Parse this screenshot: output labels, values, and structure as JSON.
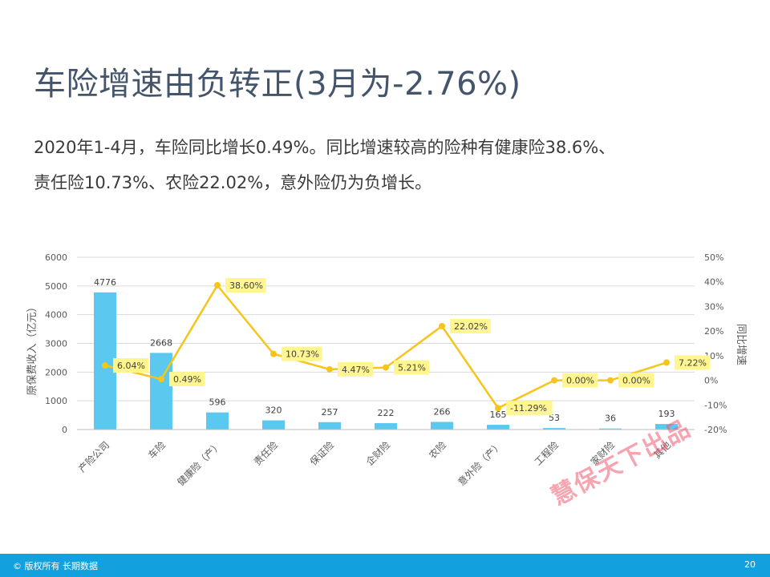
{
  "slide": {
    "title": "车险增速由负转正(3月为-2.76%)",
    "summary_line1": "2020年1-4月，车险同比增长0.49%。同比增速较高的险种有健康险38.6%、",
    "summary_line2": "责任险10.73%、农险22.02%，意外险仍为负增长。"
  },
  "watermark": "慧保天下出品",
  "footer": {
    "copyright": "© 版权所有 长期数据",
    "page_number": "20"
  },
  "chart_data": {
    "type": "bar+line",
    "categories": [
      "产险公司",
      "车险",
      "健康险（产）",
      "责任险",
      "保证险",
      "企财险",
      "农险",
      "意外险（产）",
      "工程险",
      "家财险",
      "其他"
    ],
    "series": [
      {
        "type": "bar",
        "axis": "left",
        "color": "#5bc8f0",
        "values": [
          4776,
          2668,
          596,
          320,
          257,
          222,
          266,
          165,
          53,
          36,
          193
        ],
        "labels": [
          "4776",
          "2668",
          "596",
          "320",
          "257",
          "222",
          "266",
          "165",
          "53",
          "36",
          "193"
        ]
      },
      {
        "type": "line",
        "axis": "right",
        "color": "#f5c518",
        "values": [
          6.04,
          0.49,
          38.6,
          10.73,
          4.47,
          5.21,
          22.02,
          -11.29,
          0.0,
          0.0,
          7.22
        ],
        "labels": [
          "6.04%",
          "0.49%",
          "38.60%",
          "10.73%",
          "4.47%",
          "5.21%",
          "22.02%",
          "-11.29%",
          "0.00%",
          "0.00%",
          "7.22%"
        ]
      }
    ],
    "ylabel": "原保费收入（亿元）",
    "y2label": "同比增速",
    "ylim": [
      0,
      6000
    ],
    "yticks": [
      "0",
      "1000",
      "2000",
      "3000",
      "4000",
      "5000",
      "6000"
    ],
    "y2lim": [
      -20,
      50
    ],
    "y2ticks": [
      "-20%",
      "-10%",
      "0%",
      "10%",
      "20%",
      "30%",
      "40%",
      "50%"
    ],
    "grid": true,
    "data_label_bg": "#fff68f"
  }
}
